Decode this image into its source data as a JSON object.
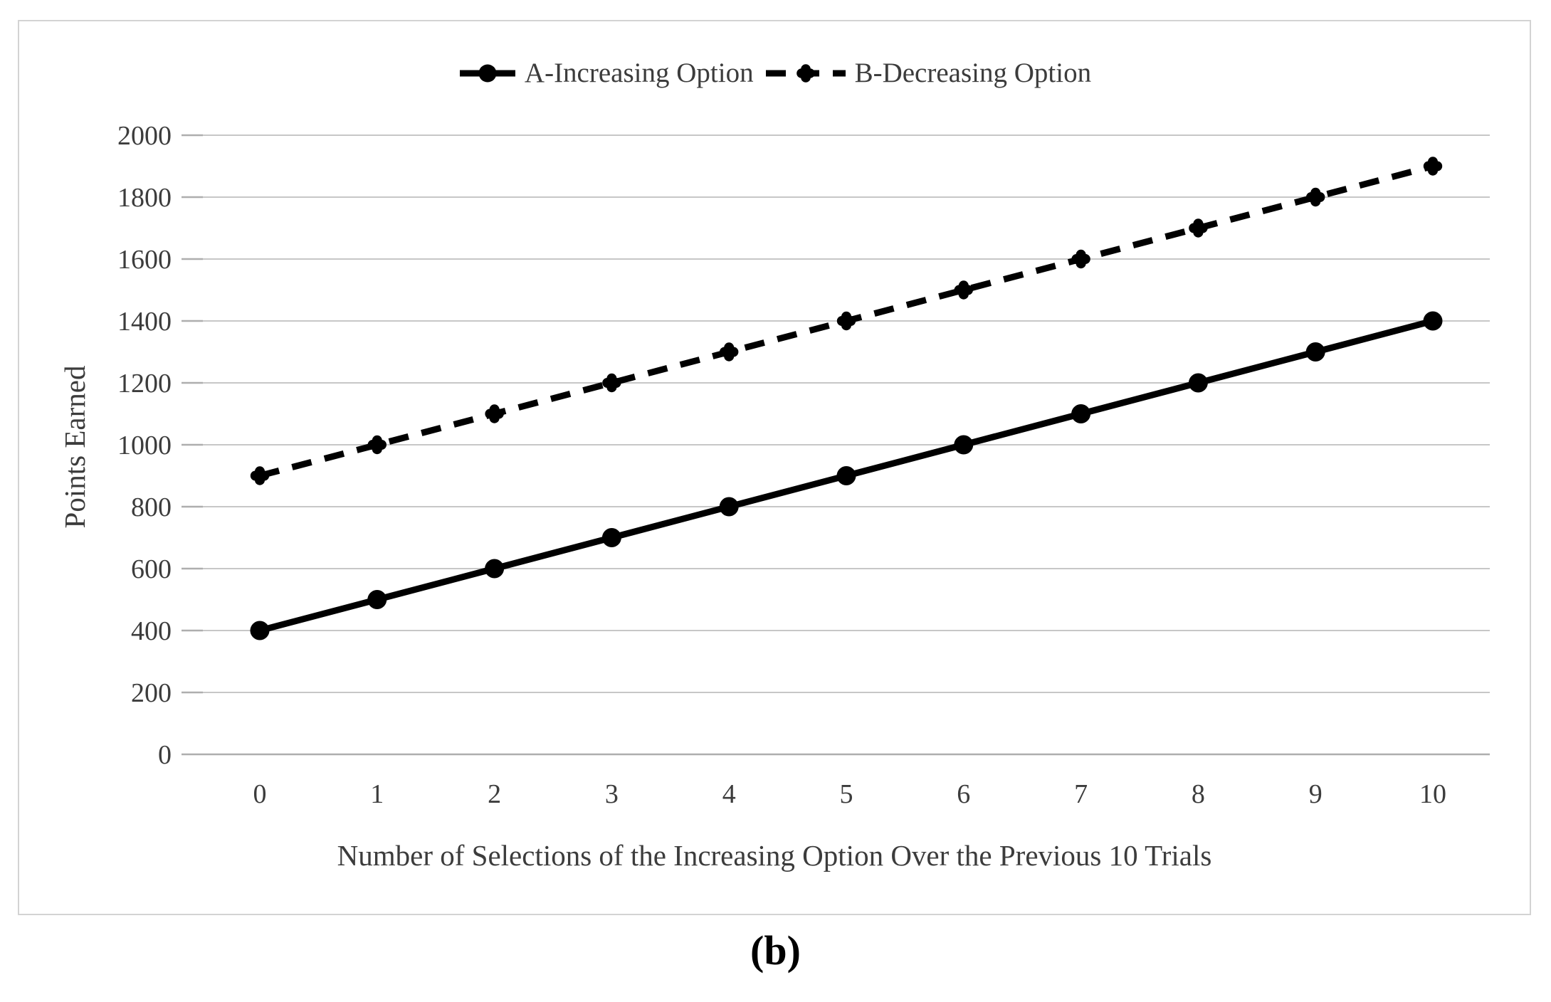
{
  "figure": {
    "caption": "(b)"
  },
  "chart_data": {
    "type": "line",
    "title": "",
    "xlabel": "Number of Selections of the Increasing Option Over the Previous 10 Trials",
    "ylabel": "Points Earned",
    "x": [
      0,
      1,
      2,
      3,
      4,
      5,
      6,
      7,
      8,
      9,
      10
    ],
    "xtick_labels": [
      "0",
      "1",
      "2",
      "3",
      "4",
      "5",
      "6",
      "7",
      "8",
      "9",
      "10"
    ],
    "yticks": [
      0,
      200,
      400,
      600,
      800,
      1000,
      1200,
      1400,
      1600,
      1800,
      2000
    ],
    "ylim": [
      0,
      2000
    ],
    "series": [
      {
        "name": "A-Increasing Option",
        "values": [
          400,
          500,
          600,
          700,
          800,
          900,
          1000,
          1100,
          1200,
          1300,
          1400
        ],
        "line_style": "solid",
        "marker": "circle"
      },
      {
        "name": "B-Decreasing Option",
        "values": [
          900,
          1000,
          1100,
          1200,
          1300,
          1400,
          1500,
          1600,
          1700,
          1800,
          1900
        ],
        "line_style": "dashed",
        "marker": "clover"
      }
    ],
    "legend_position": "top-center",
    "grid": "horizontal",
    "colors": {
      "series": "#000000",
      "gridline": "#c7c7c7",
      "axis": "#aeaeae",
      "text": "#3c3c3c",
      "panel_border": "#d3d3d3"
    }
  }
}
